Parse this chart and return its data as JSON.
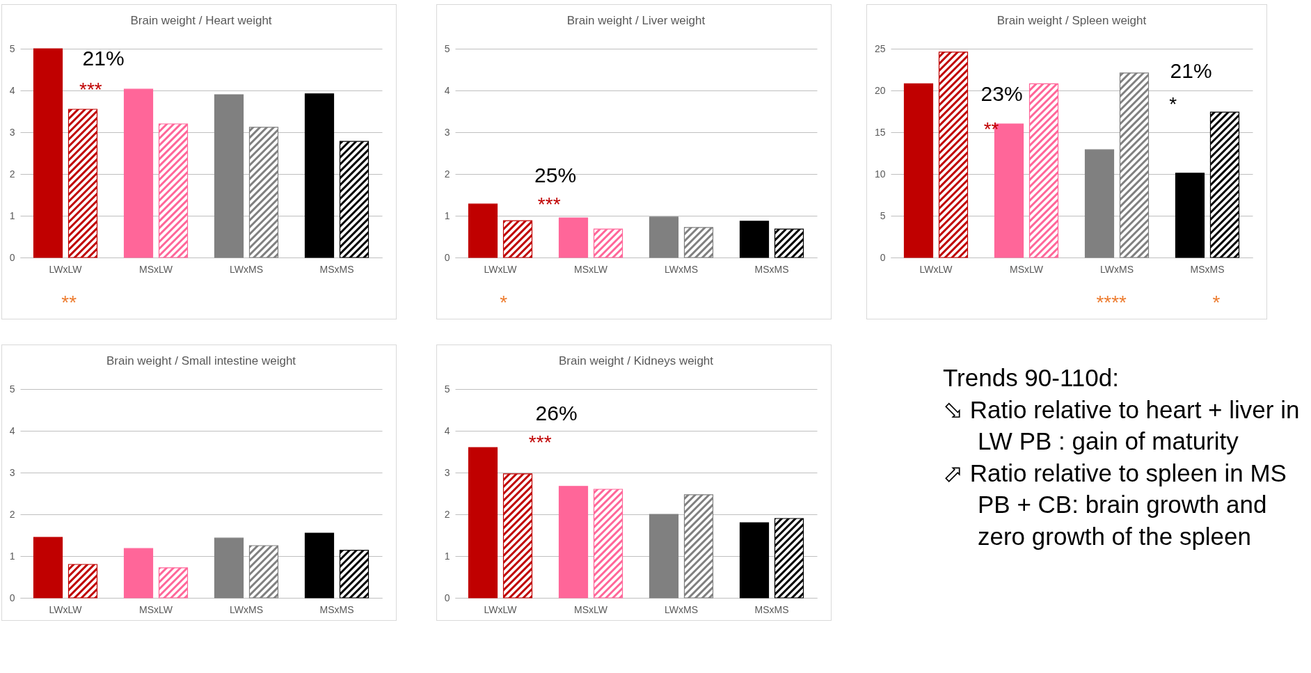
{
  "chart_data": [
    {
      "type": "bar",
      "title": "Brain weight / Heart weight",
      "categories": [
        "LWxLW",
        "MSxLW",
        "LWxMS",
        "MSxMS"
      ],
      "series": [
        {
          "colors": [
            "#c00000",
            "#ff6699",
            "#808080",
            "#000000"
          ],
          "values": [
            5.0,
            4.03,
            3.9,
            3.92
          ]
        },
        {
          "colors": [
            "#c00000",
            "#ff6699",
            "#808080",
            "#000000"
          ],
          "values": [
            3.55,
            3.2,
            3.12,
            2.78
          ]
        }
      ],
      "ylim": [
        0,
        5
      ],
      "yticks": [
        0,
        1,
        2,
        3,
        4,
        5
      ],
      "grid": "y",
      "annotations": [
        "21%",
        "***",
        "**"
      ]
    },
    {
      "type": "bar",
      "title": "Brain weight / Liver weight",
      "categories": [
        "LWxLW",
        "MSxLW",
        "LWxMS",
        "MSxMS"
      ],
      "series": [
        {
          "colors": [
            "#c00000",
            "#ff6699",
            "#808080",
            "#000000"
          ],
          "values": [
            1.28,
            0.95,
            0.97,
            0.87
          ]
        },
        {
          "colors": [
            "#c00000",
            "#ff6699",
            "#808080",
            "#000000"
          ],
          "values": [
            0.88,
            0.68,
            0.72,
            0.68
          ]
        }
      ],
      "ylim": [
        0,
        5
      ],
      "yticks": [
        0,
        1,
        2,
        3,
        4,
        5
      ],
      "grid": "y",
      "annotations": [
        "25%",
        "***",
        "*"
      ]
    },
    {
      "type": "bar",
      "title": "Brain weight / Spleen weight",
      "categories": [
        "LWxLW",
        "MSxLW",
        "LWxMS",
        "MSxMS"
      ],
      "series": [
        {
          "colors": [
            "#c00000",
            "#ff6699",
            "#808080",
            "#000000"
          ],
          "values": [
            20.8,
            16.0,
            12.9,
            10.1
          ]
        },
        {
          "colors": [
            "#c00000",
            "#ff6699",
            "#808080",
            "#000000"
          ],
          "values": [
            24.6,
            20.8,
            22.1,
            17.4
          ]
        }
      ],
      "ylim": [
        0,
        25
      ],
      "yticks": [
        0,
        5,
        10,
        15,
        20,
        25
      ],
      "grid": "y",
      "annotations": [
        "23%",
        "**",
        "21%",
        "*",
        "****",
        "*"
      ]
    },
    {
      "type": "bar",
      "title": "Brain weight / Small intestine weight",
      "categories": [
        "LWxLW",
        "MSxLW",
        "LWxMS",
        "MSxMS"
      ],
      "series": [
        {
          "colors": [
            "#c00000",
            "#ff6699",
            "#808080",
            "#000000"
          ],
          "values": [
            1.45,
            1.18,
            1.43,
            1.55
          ]
        },
        {
          "colors": [
            "#c00000",
            "#ff6699",
            "#808080",
            "#000000"
          ],
          "values": [
            0.8,
            0.72,
            1.25,
            1.14
          ]
        }
      ],
      "ylim": [
        0,
        5
      ],
      "yticks": [
        0,
        1,
        2,
        3,
        4,
        5
      ],
      "grid": "y"
    },
    {
      "type": "bar",
      "title": "Brain weight / Kidneys weight",
      "categories": [
        "LWxLW",
        "MSxLW",
        "LWxMS",
        "MSxMS"
      ],
      "series": [
        {
          "colors": [
            "#c00000",
            "#ff6699",
            "#808080",
            "#000000"
          ],
          "values": [
            3.6,
            2.67,
            2.0,
            1.8
          ]
        },
        {
          "colors": [
            "#c00000",
            "#ff6699",
            "#808080",
            "#000000"
          ],
          "values": [
            2.97,
            2.6,
            2.47,
            1.9
          ]
        }
      ],
      "ylim": [
        0,
        5
      ],
      "yticks": [
        0,
        1,
        2,
        3,
        4,
        5
      ],
      "grid": "y",
      "annotations": [
        "26%",
        "***"
      ]
    },
    {
      "type": "other",
      "title": "Trends 90-110d:",
      "annotations": [
        "⬂ Ratio relative to heart + liver in LW PB : gain of maturity",
        "⬀ Ratio relative to spleen in MS PB + CB: brain growth and zero growth of the spleen"
      ]
    }
  ]
}
